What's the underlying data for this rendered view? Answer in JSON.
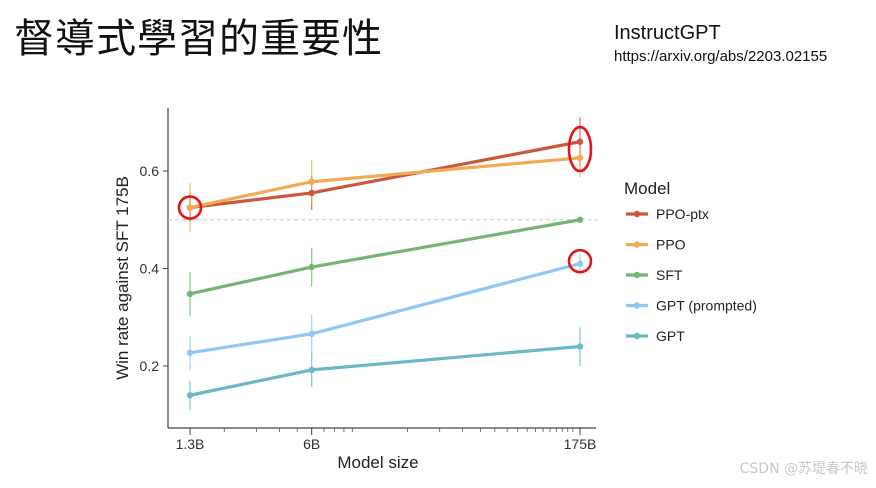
{
  "slide": {
    "title": "督導式學習的重要性",
    "reference_title": "InstructGPT",
    "reference_url": "https://arxiv.org/abs/2203.02155",
    "watermark": "CSDN @苏堤春不晓"
  },
  "chart_data": {
    "type": "line",
    "x": [
      "1.3B",
      "6B",
      "175B"
    ],
    "x_values": [
      1.3,
      6,
      175
    ],
    "x_scale": "log",
    "xlabel": "Model size",
    "ylabel": "Win rate against SFT 175B",
    "yticks": [
      0.2,
      0.4,
      0.6
    ],
    "ylim": [
      0.1,
      0.72
    ],
    "reference_line": 0.5,
    "legend_title": "Model",
    "legend_position": "right",
    "series": [
      {
        "name": "PPO-ptx",
        "color": "#c9583f",
        "values": [
          0.525,
          0.555,
          0.66
        ],
        "err": [
          0.03,
          0.035,
          0.05
        ]
      },
      {
        "name": "PPO",
        "color": "#efab56",
        "values": [
          0.525,
          0.578,
          0.627
        ],
        "err": [
          0.05,
          0.045,
          0.04
        ]
      },
      {
        "name": "SFT",
        "color": "#74b575",
        "values": [
          0.348,
          0.403,
          0.5
        ],
        "err": [
          0.045,
          0.04,
          0.0
        ]
      },
      {
        "name": "GPT (prompted)",
        "color": "#92c6f4",
        "values": [
          0.227,
          0.266,
          0.41
        ],
        "err": [
          0.035,
          0.04,
          0.02
        ]
      },
      {
        "name": "GPT",
        "color": "#6cb8c6",
        "values": [
          0.14,
          0.192,
          0.24
        ],
        "err": [
          0.03,
          0.035,
          0.04
        ]
      }
    ],
    "highlights": [
      {
        "x": "1.3B",
        "y": 0.525
      },
      {
        "x": "175B",
        "y": 0.645
      },
      {
        "x": "175B",
        "y": 0.415
      }
    ]
  }
}
